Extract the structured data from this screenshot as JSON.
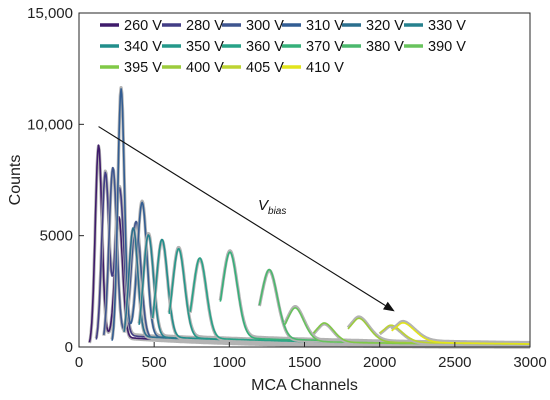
{
  "chart_data": {
    "type": "line",
    "xlabel": "MCA Channels",
    "ylabel": "Counts",
    "xlim": [
      0,
      3000
    ],
    "ylim": [
      0,
      15000
    ],
    "xticks": [
      0,
      500,
      1000,
      1500,
      2000,
      2500,
      3000
    ],
    "yticks": [
      0,
      5000,
      10000,
      15000
    ],
    "xtick_labels": [
      "0",
      "500",
      "1000",
      "1500",
      "2000",
      "2500",
      "3000"
    ],
    "ytick_labels": [
      "0",
      "5000",
      "10,000",
      "15,000"
    ],
    "grid": false,
    "legend_position": "top",
    "annotation": {
      "text": "V",
      "subscript": "bias",
      "arrow_from": [
        130,
        9900
      ],
      "arrow_to": [
        2100,
        1600
      ]
    },
    "series": [
      {
        "name": "260 V",
        "color": "#3f1b6b",
        "peaks": [
          [
            130,
            8700,
            22
          ],
          [
            265,
            5400,
            25
          ]
        ]
      },
      {
        "name": "280 V",
        "color": "#423d85",
        "peaks": [
          [
            175,
            7400,
            24
          ],
          [
            270,
            6600,
            28
          ]
        ]
      },
      {
        "name": "300 V",
        "color": "#3e558f",
        "peaks": [
          [
            225,
            7700,
            26
          ],
          [
            380,
            5200,
            32
          ]
        ]
      },
      {
        "name": "310 V",
        "color": "#325d93",
        "peaks": [
          [
            280,
            11200,
            22
          ],
          [
            420,
            6000,
            32
          ]
        ]
      },
      {
        "name": "320 V",
        "color": "#2b6f8d",
        "peaks": [
          [
            360,
            5000,
            30
          ]
        ]
      },
      {
        "name": "330 V",
        "color": "#26818e",
        "peaks": [
          [
            460,
            4700,
            34
          ]
        ]
      },
      {
        "name": "340 V",
        "color": "#218e8b",
        "peaks": [
          [
            550,
            4500,
            38
          ]
        ]
      },
      {
        "name": "350 V",
        "color": "#24988a",
        "peaks": [
          [
            660,
            4100,
            42
          ]
        ]
      },
      {
        "name": "360 V",
        "color": "#27a287",
        "peaks": [
          [
            800,
            3700,
            46
          ]
        ]
      },
      {
        "name": "370 V",
        "color": "#35b07a",
        "peaks": [
          [
            1000,
            3950,
            52
          ]
        ]
      },
      {
        "name": "380 V",
        "color": "#4bb86d",
        "peaks": [
          [
            1260,
            3200,
            58
          ]
        ]
      },
      {
        "name": "390 V",
        "color": "#68c35d",
        "peaks": [
          [
            1430,
            1550,
            64
          ]
        ]
      },
      {
        "name": "395 V",
        "color": "#80c947",
        "peaks": [
          [
            1620,
            900,
            70
          ]
        ]
      },
      {
        "name": "400 V",
        "color": "#9ccb3c",
        "peaks": [
          [
            1850,
            1100,
            76
          ]
        ]
      },
      {
        "name": "405 V",
        "color": "#bdd332",
        "peaks": [
          [
            2060,
            800,
            84
          ]
        ]
      },
      {
        "name": "410 V",
        "color": "#e2e41b",
        "peaks": [
          [
            2140,
            900,
            90
          ]
        ]
      }
    ],
    "background_curve_color": "#b3b3b3"
  }
}
